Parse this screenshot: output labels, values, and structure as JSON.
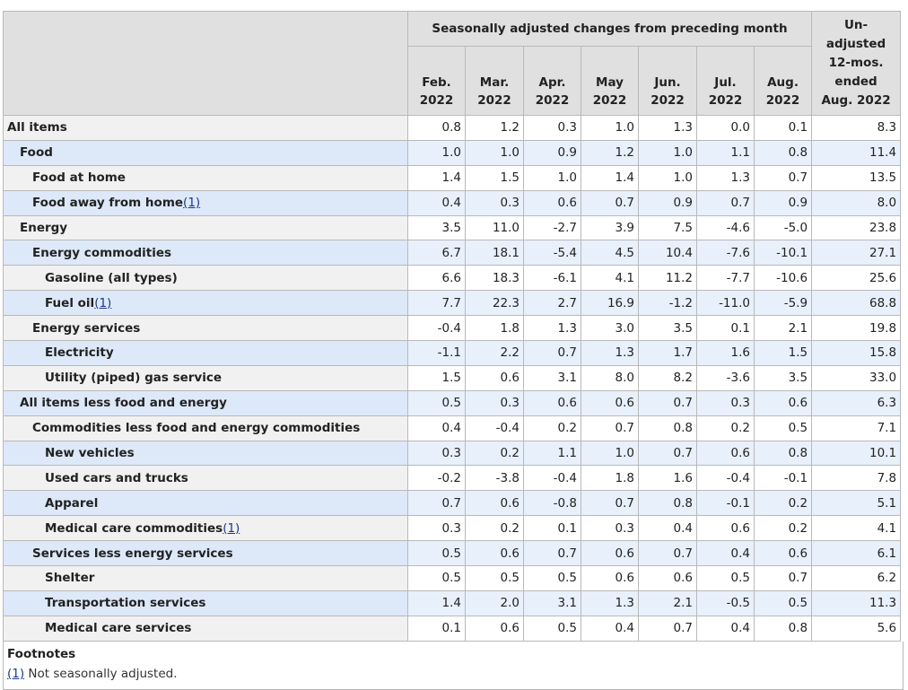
{
  "header": {
    "group_label": "Seasonally adjusted changes from preceding month",
    "unadjusted_label": [
      "Un-",
      "adjusted",
      "12-mos.",
      "ended",
      "Aug. 2022"
    ],
    "months": [
      [
        "Feb.",
        "2022"
      ],
      [
        "Mar.",
        "2022"
      ],
      [
        "Apr.",
        "2022"
      ],
      [
        "May",
        "2022"
      ],
      [
        "Jun.",
        "2022"
      ],
      [
        "Jul.",
        "2022"
      ],
      [
        "Aug.",
        "2022"
      ]
    ]
  },
  "rows": [
    {
      "label": "All items",
      "indent": 0,
      "values": [
        "0.8",
        "1.2",
        "0.3",
        "1.0",
        "1.3",
        "0.0",
        "0.1",
        "8.3"
      ]
    },
    {
      "label": "Food",
      "indent": 1,
      "values": [
        "1.0",
        "1.0",
        "0.9",
        "1.2",
        "1.0",
        "1.1",
        "0.8",
        "11.4"
      ]
    },
    {
      "label": "Food at home",
      "indent": 2,
      "values": [
        "1.4",
        "1.5",
        "1.0",
        "1.4",
        "1.0",
        "1.3",
        "0.7",
        "13.5"
      ]
    },
    {
      "label": "Food away from home",
      "indent": 2,
      "footnote": "(1)",
      "values": [
        "0.4",
        "0.3",
        "0.6",
        "0.7",
        "0.9",
        "0.7",
        "0.9",
        "8.0"
      ]
    },
    {
      "label": "Energy",
      "indent": 1,
      "values": [
        "3.5",
        "11.0",
        "-2.7",
        "3.9",
        "7.5",
        "-4.6",
        "-5.0",
        "23.8"
      ]
    },
    {
      "label": "Energy commodities",
      "indent": 2,
      "values": [
        "6.7",
        "18.1",
        "-5.4",
        "4.5",
        "10.4",
        "-7.6",
        "-10.1",
        "27.1"
      ]
    },
    {
      "label": "Gasoline (all types)",
      "indent": 3,
      "values": [
        "6.6",
        "18.3",
        "-6.1",
        "4.1",
        "11.2",
        "-7.7",
        "-10.6",
        "25.6"
      ]
    },
    {
      "label": "Fuel oil",
      "indent": 3,
      "footnote": "(1)",
      "values": [
        "7.7",
        "22.3",
        "2.7",
        "16.9",
        "-1.2",
        "-11.0",
        "-5.9",
        "68.8"
      ]
    },
    {
      "label": "Energy services",
      "indent": 2,
      "values": [
        "-0.4",
        "1.8",
        "1.3",
        "3.0",
        "3.5",
        "0.1",
        "2.1",
        "19.8"
      ]
    },
    {
      "label": "Electricity",
      "indent": 3,
      "values": [
        "-1.1",
        "2.2",
        "0.7",
        "1.3",
        "1.7",
        "1.6",
        "1.5",
        "15.8"
      ]
    },
    {
      "label": "Utility (piped) gas service",
      "indent": 3,
      "values": [
        "1.5",
        "0.6",
        "3.1",
        "8.0",
        "8.2",
        "-3.6",
        "3.5",
        "33.0"
      ]
    },
    {
      "label": "All items less food and energy",
      "indent": 1,
      "values": [
        "0.5",
        "0.3",
        "0.6",
        "0.6",
        "0.7",
        "0.3",
        "0.6",
        "6.3"
      ]
    },
    {
      "label": "Commodities less food and energy commodities",
      "indent": 2,
      "values": [
        "0.4",
        "-0.4",
        "0.2",
        "0.7",
        "0.8",
        "0.2",
        "0.5",
        "7.1"
      ]
    },
    {
      "label": "New vehicles",
      "indent": 3,
      "values": [
        "0.3",
        "0.2",
        "1.1",
        "1.0",
        "0.7",
        "0.6",
        "0.8",
        "10.1"
      ]
    },
    {
      "label": "Used cars and trucks",
      "indent": 3,
      "values": [
        "-0.2",
        "-3.8",
        "-0.4",
        "1.8",
        "1.6",
        "-0.4",
        "-0.1",
        "7.8"
      ]
    },
    {
      "label": "Apparel",
      "indent": 3,
      "values": [
        "0.7",
        "0.6",
        "-0.8",
        "0.7",
        "0.8",
        "-0.1",
        "0.2",
        "5.1"
      ]
    },
    {
      "label": "Medical care commodities",
      "indent": 3,
      "footnote": "(1)",
      "values": [
        "0.3",
        "0.2",
        "0.1",
        "0.3",
        "0.4",
        "0.6",
        "0.2",
        "4.1"
      ]
    },
    {
      "label": "Services less energy services",
      "indent": 2,
      "values": [
        "0.5",
        "0.6",
        "0.7",
        "0.6",
        "0.7",
        "0.4",
        "0.6",
        "6.1"
      ]
    },
    {
      "label": "Shelter",
      "indent": 3,
      "values": [
        "0.5",
        "0.5",
        "0.5",
        "0.6",
        "0.6",
        "0.5",
        "0.7",
        "6.2"
      ]
    },
    {
      "label": "Transportation services",
      "indent": 3,
      "values": [
        "1.4",
        "2.0",
        "3.1",
        "1.3",
        "2.1",
        "-0.5",
        "0.5",
        "11.3"
      ]
    },
    {
      "label": "Medical care services",
      "indent": 3,
      "values": [
        "0.1",
        "0.6",
        "0.5",
        "0.4",
        "0.7",
        "0.4",
        "0.8",
        "5.6"
      ]
    }
  ],
  "footnotes": {
    "title": "Footnotes",
    "items": [
      {
        "ref": "(1)",
        "text": " Not seasonally adjusted."
      }
    ]
  },
  "colors": {
    "header_bg": "#e0e0e0",
    "row_alt_bg": "#dde8f8",
    "row_bg": "#f1f1f1",
    "link": "#1a3a8a"
  }
}
